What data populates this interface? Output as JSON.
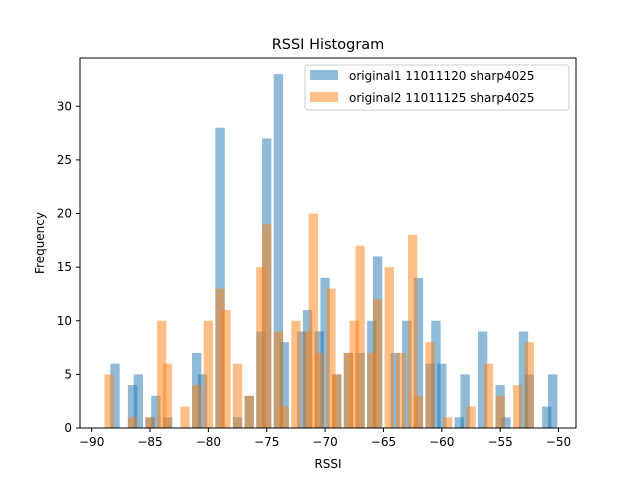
{
  "chart_data": {
    "type": "bar",
    "title": "RSSI Histogram",
    "xlabel": "RSSI",
    "ylabel": "Frequency",
    "xlim": [
      -91,
      -48.5
    ],
    "ylim": [
      0,
      34.5
    ],
    "xticks": [
      -90,
      -85,
      -80,
      -75,
      -70,
      -65,
      -60,
      -55,
      -50
    ],
    "yticks": [
      0,
      5,
      10,
      15,
      20,
      25,
      30
    ],
    "bin_width": 0.8,
    "legend_position": "top-right",
    "grid": false,
    "series": [
      {
        "name": "original1 11011120 sharp4025",
        "color": "#1f77b4",
        "opacity": 0.5,
        "bins": [
          {
            "x": -88,
            "value": 6
          },
          {
            "x": -86.5,
            "value": 4
          },
          {
            "x": -86,
            "value": 5
          },
          {
            "x": -85,
            "value": 1
          },
          {
            "x": -84.5,
            "value": 3
          },
          {
            "x": -83.5,
            "value": 1
          },
          {
            "x": -81,
            "value": 7
          },
          {
            "x": -80.5,
            "value": 5
          },
          {
            "x": -79,
            "value": 28
          },
          {
            "x": -77.5,
            "value": 1
          },
          {
            "x": -76.5,
            "value": 3
          },
          {
            "x": -75.5,
            "value": 9
          },
          {
            "x": -75,
            "value": 27
          },
          {
            "x": -74,
            "value": 33
          },
          {
            "x": -73.5,
            "value": 8
          },
          {
            "x": -72,
            "value": 9
          },
          {
            "x": -71.5,
            "value": 11
          },
          {
            "x": -70.5,
            "value": 9
          },
          {
            "x": -70,
            "value": 14
          },
          {
            "x": -69,
            "value": 5
          },
          {
            "x": -68,
            "value": 7
          },
          {
            "x": -67,
            "value": 7
          },
          {
            "x": -66,
            "value": 10
          },
          {
            "x": -65.5,
            "value": 16
          },
          {
            "x": -64,
            "value": 7
          },
          {
            "x": -63,
            "value": 10
          },
          {
            "x": -62,
            "value": 14
          },
          {
            "x": -61,
            "value": 6
          },
          {
            "x": -60.5,
            "value": 10
          },
          {
            "x": -60,
            "value": 6
          },
          {
            "x": -58.5,
            "value": 1
          },
          {
            "x": -58,
            "value": 5
          },
          {
            "x": -56.5,
            "value": 9
          },
          {
            "x": -55,
            "value": 4
          },
          {
            "x": -54.5,
            "value": 1
          },
          {
            "x": -53,
            "value": 9
          },
          {
            "x": -52.5,
            "value": 5
          },
          {
            "x": -51,
            "value": 2
          },
          {
            "x": -50.5,
            "value": 5
          }
        ]
      },
      {
        "name": "original2 11011125 sharp4025",
        "color": "#ff7f0e",
        "opacity": 0.5,
        "bins": [
          {
            "x": -88.5,
            "value": 5
          },
          {
            "x": -86.5,
            "value": 1
          },
          {
            "x": -85,
            "value": 1
          },
          {
            "x": -84,
            "value": 10
          },
          {
            "x": -83.5,
            "value": 6
          },
          {
            "x": -82,
            "value": 2
          },
          {
            "x": -81,
            "value": 4
          },
          {
            "x": -80,
            "value": 10
          },
          {
            "x": -79,
            "value": 13
          },
          {
            "x": -78.5,
            "value": 11
          },
          {
            "x": -77.5,
            "value": 6
          },
          {
            "x": -76.5,
            "value": 3
          },
          {
            "x": -75.5,
            "value": 15
          },
          {
            "x": -75,
            "value": 19
          },
          {
            "x": -74,
            "value": 9
          },
          {
            "x": -73.5,
            "value": 2
          },
          {
            "x": -72.5,
            "value": 10
          },
          {
            "x": -71.5,
            "value": 9
          },
          {
            "x": -71,
            "value": 20
          },
          {
            "x": -70.5,
            "value": 7
          },
          {
            "x": -69.5,
            "value": 13
          },
          {
            "x": -69,
            "value": 5
          },
          {
            "x": -68,
            "value": 7
          },
          {
            "x": -67.5,
            "value": 10
          },
          {
            "x": -67,
            "value": 17
          },
          {
            "x": -66,
            "value": 7
          },
          {
            "x": -65.5,
            "value": 12
          },
          {
            "x": -64.5,
            "value": 15
          },
          {
            "x": -63.5,
            "value": 7
          },
          {
            "x": -62.5,
            "value": 18
          },
          {
            "x": -62,
            "value": 3
          },
          {
            "x": -61,
            "value": 8
          },
          {
            "x": -59.5,
            "value": 1
          },
          {
            "x": -57.5,
            "value": 2
          },
          {
            "x": -56,
            "value": 6
          },
          {
            "x": -55,
            "value": 3
          },
          {
            "x": -53.5,
            "value": 4
          },
          {
            "x": -52.5,
            "value": 8
          }
        ]
      }
    ]
  }
}
